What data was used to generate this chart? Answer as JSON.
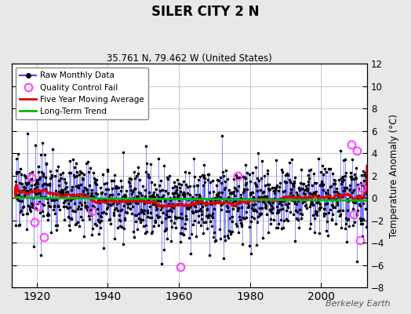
{
  "title": "SILER CITY 2 N",
  "subtitle": "35.761 N, 79.462 W (United States)",
  "ylabel": "Temperature Anomaly (°C)",
  "watermark": "Berkeley Earth",
  "xlim": [
    1913,
    2013
  ],
  "ylim": [
    -8,
    12
  ],
  "yticks": [
    -8,
    -6,
    -4,
    -2,
    0,
    2,
    4,
    6,
    8,
    10,
    12
  ],
  "xticks": [
    1920,
    1940,
    1960,
    1980,
    2000
  ],
  "grid_color": "#c8c8c8",
  "bg_color": "#e8e8e8",
  "plot_bg": "#ffffff",
  "raw_line_color": "#4444ff",
  "raw_marker_color": "#000000",
  "qc_fail_color": "#ff44ff",
  "moving_avg_color": "#dd0000",
  "trend_color": "#00bb00",
  "seed": 17,
  "n_years": 99,
  "start_year": 1914
}
